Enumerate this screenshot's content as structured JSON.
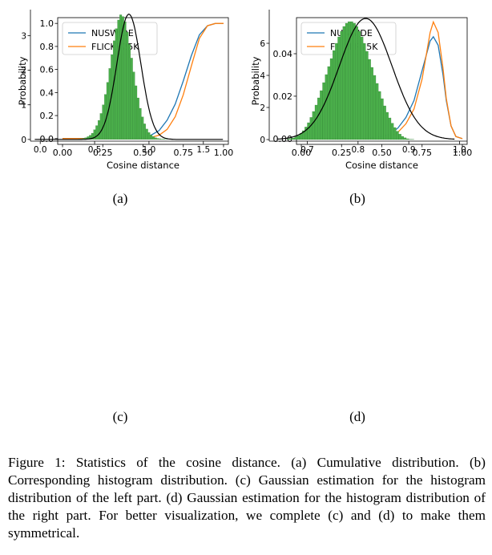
{
  "colors": {
    "nuswide": "#1f77b4",
    "flickr": "#ff7f0e",
    "bar": "#4aae4a",
    "bar_edge": "#2e7d32",
    "fit": "#000000"
  },
  "chart_data": [
    {
      "id": "a",
      "type": "line",
      "xlabel": "Cosine distance",
      "ylabel": "Probability",
      "xlim": [
        -0.03,
        1.03
      ],
      "ylim": [
        -0.05,
        1.05
      ],
      "xticks": [
        "0.00",
        "0.25",
        "0.50",
        "0.75",
        "1.00"
      ],
      "yticks": [
        "0.0",
        "0.2",
        "0.4",
        "0.6",
        "0.8",
        "1.0"
      ],
      "legend": [
        "NUSWIDE",
        "FLICKR25K"
      ],
      "legend_position": "upper-left",
      "series": [
        {
          "name": "NUSWIDE",
          "x": [
            0,
            0.4,
            0.5,
            0.55,
            0.6,
            0.65,
            0.7,
            0.75,
            0.8,
            0.85,
            0.9,
            0.95,
            1.0
          ],
          "y": [
            0,
            0,
            0.01,
            0.03,
            0.07,
            0.16,
            0.3,
            0.5,
            0.72,
            0.9,
            0.98,
            1.0,
            1.0
          ]
        },
        {
          "name": "FLICKR25K",
          "x": [
            0,
            0.4,
            0.5,
            0.55,
            0.6,
            0.65,
            0.7,
            0.75,
            0.8,
            0.85,
            0.9,
            0.95,
            1.0
          ],
          "y": [
            0,
            0,
            0.0,
            0.01,
            0.03,
            0.08,
            0.19,
            0.38,
            0.63,
            0.87,
            0.98,
            1.0,
            1.0
          ]
        }
      ]
    },
    {
      "id": "b",
      "type": "line",
      "xlabel": "Cosine distance",
      "ylabel": "Probability",
      "xlim": [
        -0.03,
        1.03
      ],
      "ylim": [
        -0.0027,
        0.057
      ],
      "xticks": [
        "0.00",
        "0.25",
        "0.50",
        "0.75",
        "1.00"
      ],
      "yticks": [
        "0.00",
        "0.02",
        "0.04"
      ],
      "legend": [
        "NUSWIDE",
        "FLICKR25K"
      ],
      "legend_position": "upper-left",
      "series": [
        {
          "name": "NUSWIDE",
          "x": [
            0,
            0.4,
            0.5,
            0.55,
            0.6,
            0.65,
            0.7,
            0.75,
            0.8,
            0.82,
            0.85,
            0.88,
            0.9,
            0.93,
            0.96,
            1.0
          ],
          "y": [
            0,
            0,
            0.001,
            0.002,
            0.005,
            0.01,
            0.018,
            0.032,
            0.046,
            0.048,
            0.044,
            0.03,
            0.018,
            0.006,
            0.001,
            0
          ]
        },
        {
          "name": "FLICKR25K",
          "x": [
            0,
            0.4,
            0.5,
            0.55,
            0.6,
            0.65,
            0.7,
            0.75,
            0.8,
            0.82,
            0.85,
            0.88,
            0.9,
            0.93,
            0.96,
            1.0
          ],
          "y": [
            0,
            0,
            0.0,
            0.001,
            0.003,
            0.007,
            0.014,
            0.028,
            0.05,
            0.055,
            0.05,
            0.033,
            0.019,
            0.006,
            0.001,
            0
          ]
        }
      ]
    },
    {
      "id": "c",
      "type": "histogram",
      "xlim": [
        -0.09,
        1.73
      ],
      "ylim": [
        -0.05,
        3.75
      ],
      "xticks": [
        "0.0",
        "0.5",
        "1.0",
        "1.5"
      ],
      "xtick_values": [
        0,
        0.5,
        1.0,
        1.5
      ],
      "yticks": [
        "0",
        "1",
        "2",
        "3"
      ],
      "ytick_values": [
        0,
        1,
        2,
        3
      ],
      "bins": {
        "start": 0.35,
        "width": 0.02,
        "values": [
          0.01,
          0.02,
          0.03,
          0.05,
          0.08,
          0.12,
          0.18,
          0.28,
          0.4,
          0.55,
          0.75,
          1.0,
          1.3,
          1.65,
          2.05,
          2.45,
          2.85,
          3.2,
          3.45,
          3.6,
          3.55,
          3.4,
          3.1,
          2.75,
          2.35,
          1.95,
          1.55,
          1.2,
          0.9,
          0.65,
          0.45,
          0.3,
          0.2,
          0.13,
          0.08,
          0.05,
          0.03,
          0.02,
          0.01,
          0.01,
          0.005
        ]
      },
      "fit": {
        "mean": 0.815,
        "std": 0.11,
        "peak": 3.62,
        "xrange": [
          -0.05,
          1.68
        ]
      }
    },
    {
      "id": "d",
      "type": "histogram",
      "xlim": [
        0.625,
        1.015
      ],
      "ylim": [
        -0.1,
        8.1
      ],
      "xticks": [
        "0.7",
        "0.8",
        "0.9",
        "1.0"
      ],
      "xtick_values": [
        0.7,
        0.8,
        0.9,
        1.0
      ],
      "yticks": [
        "0",
        "2",
        "4",
        "6"
      ],
      "ytick_values": [
        0,
        2,
        4,
        6
      ],
      "bins": {
        "start": 0.66,
        "width": 0.005,
        "values": [
          0.03,
          0.06,
          0.1,
          0.16,
          0.25,
          0.38,
          0.55,
          0.78,
          1.05,
          1.38,
          1.75,
          2.15,
          2.6,
          3.05,
          3.55,
          4.05,
          4.55,
          5.05,
          5.55,
          6.0,
          6.4,
          6.75,
          7.05,
          7.25,
          7.35,
          7.35,
          7.25,
          7.05,
          6.75,
          6.4,
          6.0,
          5.5,
          5.0,
          4.5,
          4.0,
          3.5,
          3.0,
          2.55,
          2.1,
          1.7,
          1.35,
          1.02,
          0.75,
          0.52,
          0.34,
          0.2,
          0.11,
          0.05,
          0.02,
          0.01
        ]
      },
      "fit": {
        "mean": 0.815,
        "std": 0.052,
        "peak": 7.55,
        "xrange": [
          0.64,
          0.99
        ]
      }
    }
  ],
  "subfigure_labels": [
    "(a)",
    "(b)",
    "(c)",
    "(d)"
  ],
  "caption": "Figure 1: Statistics of the cosine distance. (a) Cumulative distribution. (b) Corresponding histogram distribution. (c) Gaussian estimation for the histogram distribution of the left part. (d) Gaussian estimation for the histogram distribution of the right part. For better visualization, we complete (c) and (d) to make them symmetrical."
}
